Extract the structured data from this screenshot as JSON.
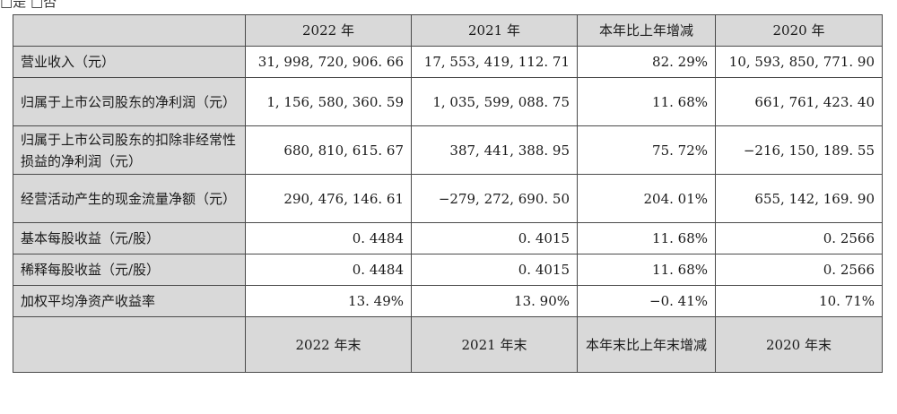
{
  "top_text": "□是 □否",
  "table": {
    "header_years": [
      "2022 年",
      "2021 年",
      "本年比上年增减",
      "2020 年"
    ],
    "rows": [
      {
        "label": "营业收入（元）",
        "values": [
          "31, 998, 720, 906. 66",
          "17, 553, 419, 112. 71",
          "82. 29%",
          "10, 593, 850, 771. 90"
        ]
      },
      {
        "label": "归属于上市公司股东的净利润（元）",
        "values": [
          "1, 156, 580, 360. 59",
          "1, 035, 599, 088. 75",
          "11. 68%",
          "661, 761, 423. 40"
        ]
      },
      {
        "label": "归属于上市公司股东的扣除非经常性损益的净利润（元）",
        "values": [
          "680, 810, 615. 67",
          "387, 441, 388. 95",
          "75. 72%",
          "−216, 150, 189. 55"
        ]
      },
      {
        "label": "经营活动产生的现金流量净额（元）",
        "values": [
          "290, 476, 146. 61",
          "−279, 272, 690. 50",
          "204. 01%",
          "655, 142, 169. 90"
        ]
      },
      {
        "label": "基本每股收益（元/股）",
        "values": [
          "0. 4484",
          "0. 4015",
          "11. 68%",
          "0. 2566"
        ]
      },
      {
        "label": "稀释每股收益（元/股）",
        "values": [
          "0. 4484",
          "0. 4015",
          "11. 68%",
          "0. 2566"
        ]
      },
      {
        "label": "加权平均净资产收益率",
        "values": [
          "13. 49%",
          "13. 90%",
          "−0. 41%",
          "10. 71%"
        ]
      }
    ],
    "footer_years": [
      "2022 年末",
      "2021 年末",
      "本年末比上年末增减",
      "2020 年末"
    ]
  }
}
